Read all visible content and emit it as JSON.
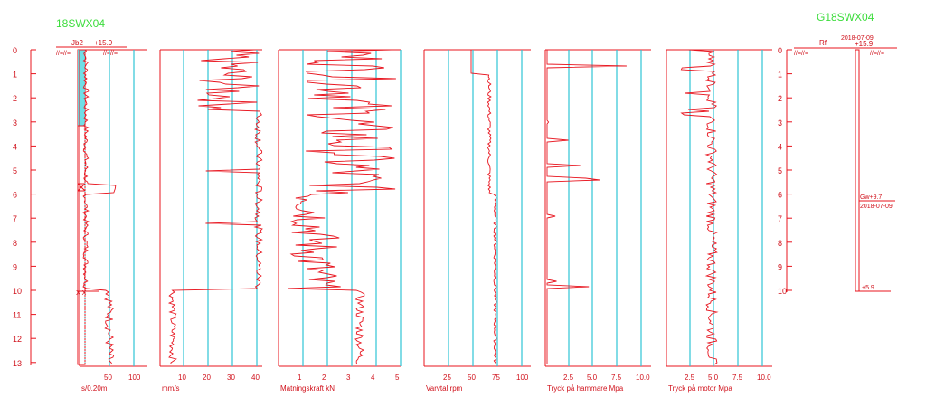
{
  "titles": {
    "left": "18SWX04",
    "right": "G18SWX04"
  },
  "colors": {
    "frame": "#e8141e",
    "trace": "#e8141e",
    "grid": "#2fc4d6",
    "axis_text": "#d0111b",
    "title": "#3cdc3c",
    "fill": "#58d8e0"
  },
  "depth_axis": {
    "ticks": [
      "0",
      "1",
      "2",
      "3",
      "4",
      "5",
      "6",
      "7",
      "8",
      "9",
      "10",
      "11",
      "12",
      "13"
    ]
  },
  "borehole": {
    "label": "Jb2",
    "elevation": "+15.9",
    "marker_x": "X",
    "marker_x2": "X X"
  },
  "panels": [
    {
      "id": "penetration",
      "xlabel": "s/0.20m",
      "ticks": [
        "50",
        "100"
      ]
    },
    {
      "id": "speed",
      "xlabel": "mm/s",
      "ticks": [
        "10",
        "20",
        "30",
        "40"
      ]
    },
    {
      "id": "feed",
      "xlabel": "Matningskraft kN",
      "ticks": [
        "1",
        "2",
        "3",
        "4",
        "5"
      ]
    },
    {
      "id": "rpm",
      "xlabel": "Varvtal rpm",
      "ticks": [
        "25",
        "50",
        "75",
        "100"
      ]
    },
    {
      "id": "hammer",
      "xlabel": "Tryck på hammare Mpa",
      "ticks": [
        "2.5",
        "5.0",
        "7.5",
        "10.0"
      ]
    },
    {
      "id": "motor",
      "xlabel": "Tryck på motor Mpa",
      "ticks": [
        "2.5",
        "5.0",
        "7.5",
        "10.0"
      ]
    }
  ],
  "well": {
    "label": "Rf",
    "date_top": "2018-07-09",
    "elevation": "+15.9",
    "gw_label": "Gw+9.7",
    "gw_date": "2018-07-09",
    "bottom": "+5.9"
  }
}
